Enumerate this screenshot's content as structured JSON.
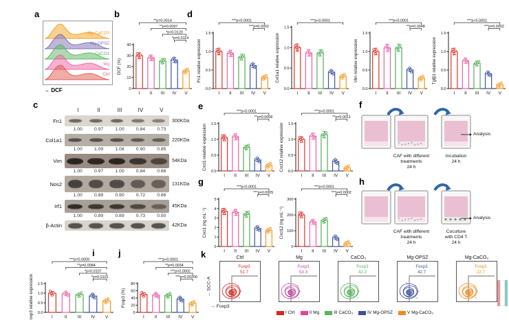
{
  "figure": {
    "panel_labels": {
      "a": "a",
      "b": "b",
      "c": "c",
      "d": "d",
      "e": "e",
      "f": "f",
      "g": "g",
      "h": "h",
      "i": "i",
      "j": "j",
      "k": "k"
    }
  },
  "groups": [
    "I",
    "II",
    "III",
    "IV",
    "V"
  ],
  "group_colors": [
    "#dd3328",
    "#ee5fa0",
    "#4fae52",
    "#3d51a3",
    "#f7941d"
  ],
  "panel_a": {
    "xlabel": "DCF",
    "curves": [
      {
        "label": "Mg-CaCO3",
        "color": "#f2a124"
      },
      {
        "label": "Mg-OPSZ",
        "color": "#8070b8"
      },
      {
        "label": "CaCO3",
        "color": "#5cb560"
      },
      {
        "label": "Mg",
        "color": "#ef64a2"
      },
      {
        "label": "Ctrl",
        "color": "#e25b52"
      }
    ]
  },
  "panel_c": {
    "lanes": [
      "I",
      "II",
      "III",
      "IV",
      "V"
    ],
    "rows": [
      {
        "protein": "Fn1",
        "kda": "300KDa",
        "values": [
          "1.00",
          "0.97",
          "1.00",
          "0.84",
          "0.73"
        ]
      },
      {
        "protein": "Col1a1",
        "kda": "220KDa",
        "values": [
          "1.00",
          "1.09",
          "1.08",
          "0.90",
          "0.85"
        ]
      },
      {
        "protein": "Vim",
        "kda": "54KDa",
        "values": [
          "1.00",
          "0.97",
          "1.00",
          "0.84",
          "0.66"
        ]
      },
      {
        "protein": "Nos2",
        "kda": "131KDa",
        "values": [
          "1.00",
          "0.89",
          "0.90",
          "0.72",
          "0.66"
        ]
      },
      {
        "protein": "Irf1",
        "kda": "45KDa",
        "values": [
          "1.00",
          "0.89",
          "0.89",
          "0.73",
          "0.50"
        ]
      },
      {
        "protein": "β-Actin",
        "kda": "42KDa",
        "values": []
      }
    ]
  },
  "panel_f": {
    "caption1_l1": "CAF with different",
    "caption1_l2": "treatments",
    "caption1_l3": "24 h",
    "caption2_l1": "Incubation",
    "caption2_l2": "24 h",
    "analysis": "Analysis"
  },
  "panel_h": {
    "caption1_l1": "CAF with different",
    "caption1_l2": "treatments",
    "caption1_l3": "24 h",
    "caption2_l1": "Coculture",
    "caption2_l2": "with CD4 T",
    "caption2_l3": "24 h",
    "analysis": "Analysis"
  },
  "panel_k": {
    "ylabel": "SCC-A",
    "xlabel": "Foxp3",
    "plots": [
      {
        "title": "Ctrl",
        "gate_label": "Foxp3",
        "gate_value": "51.7",
        "color": "#d8281e"
      },
      {
        "title": "Mg",
        "gate_label": "Foxp3",
        "gate_value": "53.3",
        "color": "#c0479c"
      },
      {
        "title": "CaCO₃",
        "gate_label": "Foxp3",
        "gate_value": "42.2",
        "color": "#58b45c"
      },
      {
        "title": "Mg-OPSZ",
        "gate_label": "Foxp3",
        "gate_value": "42.7",
        "color": "#3d4fa0"
      },
      {
        "title": "Mg-CaCO₃",
        "gate_label": "Foxp3",
        "gate_value": "22.7",
        "color": "#f08a1d"
      }
    ],
    "legend": [
      {
        "label": "I Ctrl",
        "color": "#d8281e"
      },
      {
        "label": "II Mg",
        "color": "#ec3f93"
      },
      {
        "label": "III CaCO₃",
        "color": "#58b45c"
      },
      {
        "label": "IV Mg-OPSZ",
        "color": "#3d4fa0"
      },
      {
        "label": "V Mg-CaCO₃",
        "color": "#f08a1d"
      }
    ]
  },
  "chart_data": [
    {
      "id": "b",
      "type": "bar",
      "ylabel": "DCF (%)",
      "categories": [
        "I",
        "II",
        "III",
        "IV",
        "V"
      ],
      "values": [
        30,
        28,
        25,
        26,
        16
      ],
      "ylim": [
        0,
        40
      ],
      "yticks": [
        "0",
        "10",
        "20",
        "30",
        "40"
      ],
      "sig": [
        {
          "from": 0,
          "to": 4,
          "text": "**p=0.0014"
        },
        {
          "from": 1,
          "to": 4,
          "text": "**p=0.0097"
        },
        {
          "from": 2,
          "to": 4,
          "text": "*p=0.0120"
        },
        {
          "from": 3,
          "to": 4,
          "text": "*p=0.0114"
        }
      ]
    },
    {
      "id": "d1",
      "type": "bar",
      "ylabel": "Fn1 relative expression",
      "categories": [
        "I",
        "II",
        "III",
        "IV",
        "V"
      ],
      "values": [
        1.0,
        0.95,
        0.85,
        0.62,
        0.3
      ],
      "ylim": [
        0,
        1.5
      ],
      "yticks": [
        "0.0",
        "0.5",
        "1.0",
        "1.5"
      ],
      "sig": [
        {
          "from": 0,
          "to": 4,
          "text": "***p<0.0001"
        },
        {
          "from": 3,
          "to": 4,
          "text": "***p=0.0002"
        }
      ]
    },
    {
      "id": "d2",
      "type": "bar",
      "ylabel": "Col1a1 relative expression",
      "categories": [
        "I",
        "II",
        "III",
        "IV",
        "V"
      ],
      "values": [
        1.0,
        0.87,
        0.87,
        0.4,
        0.3
      ],
      "ylim": [
        0,
        1.5
      ],
      "yticks": [
        "0.0",
        "0.5",
        "1.0",
        "1.5"
      ],
      "sig": [
        {
          "from": 0,
          "to": 4,
          "text": "***p<0.0001"
        }
      ]
    },
    {
      "id": "d3",
      "type": "bar",
      "ylabel": "Vim relative expression",
      "categories": [
        "I",
        "II",
        "III",
        "IV",
        "V"
      ],
      "values": [
        1.0,
        1.1,
        1.1,
        0.5,
        0.28
      ],
      "ylim": [
        0,
        1.5
      ],
      "yticks": [
        "0.0",
        "0.5",
        "1.0",
        "1.5"
      ],
      "sig": [
        {
          "from": 0,
          "to": 4,
          "text": "***p<0.0001"
        },
        {
          "from": 3,
          "to": 4,
          "text": "**p=0.0048"
        }
      ]
    },
    {
      "id": "d4",
      "type": "bar",
      "ylabel": "Tgfβ1 relative expression",
      "categories": [
        "I",
        "II",
        "III",
        "IV",
        "V"
      ],
      "values": [
        1.0,
        0.75,
        0.68,
        0.4,
        0.1
      ],
      "ylim": [
        0,
        1.5
      ],
      "yticks": [
        "0.0",
        "0.5",
        "1.0",
        "1.5"
      ],
      "sig": [
        {
          "from": 0,
          "to": 4,
          "text": "***p<0.0001"
        },
        {
          "from": 3,
          "to": 4,
          "text": "***p=0.0002"
        }
      ]
    },
    {
      "id": "e1",
      "type": "bar",
      "ylabel": "Cxcl1 relative expression",
      "categories": [
        "I",
        "II",
        "III",
        "IV",
        "V"
      ],
      "values": [
        1.05,
        1.08,
        0.75,
        0.35,
        0.18
      ],
      "ylim": [
        0,
        1.5
      ],
      "yticks": [
        "0.0",
        "0.5",
        "1.0",
        "1.5"
      ],
      "sig": [
        {
          "from": 0,
          "to": 4,
          "text": "***p<0.0001"
        },
        {
          "from": 3,
          "to": 4,
          "text": "**p=0.0058"
        }
      ]
    },
    {
      "id": "e2",
      "type": "bar",
      "ylabel": "Cxcl12 relative expression",
      "categories": [
        "I",
        "II",
        "III",
        "IV",
        "V"
      ],
      "values": [
        1.0,
        1.1,
        1.15,
        0.3,
        0.1
      ],
      "ylim": [
        0,
        1.5
      ],
      "yticks": [
        "0.0",
        "0.5",
        "1.0",
        "1.5"
      ],
      "sig": [
        {
          "from": 0,
          "to": 4,
          "text": "***p<0.0001"
        },
        {
          "from": 3,
          "to": 4,
          "text": "**p=0.0011"
        }
      ]
    },
    {
      "id": "g1",
      "type": "bar",
      "ylabel": "Cxcl1 (ng mL⁻¹)",
      "categories": [
        "I",
        "II",
        "III",
        "IV",
        "V"
      ],
      "values": [
        3.7,
        3.6,
        3.4,
        1.9,
        1.7
      ],
      "ylim": [
        0,
        5
      ],
      "yticks": [
        "0",
        "1",
        "2",
        "3",
        "4",
        "5"
      ],
      "sig": [
        {
          "from": 0,
          "to": 4,
          "text": "***p<0.0001"
        },
        {
          "from": 3,
          "to": 4,
          "text": "***p=0.0005"
        }
      ]
    },
    {
      "id": "g2",
      "type": "bar",
      "ylabel": "Cxcl12 (ng mL⁻¹)",
      "categories": [
        "I",
        "II",
        "III",
        "IV",
        "V"
      ],
      "values": [
        200,
        155,
        165,
        55,
        20
      ],
      "ylim": [
        0,
        300
      ],
      "yticks": [
        "0",
        "100",
        "200",
        "300"
      ],
      "sig": [
        {
          "from": 0,
          "to": 4,
          "text": "***p<0.0001"
        },
        {
          "from": 3,
          "to": 4,
          "text": "***p=0.0002"
        }
      ]
    },
    {
      "id": "i",
      "type": "bar",
      "ylabel": "Foxp3 relative expression",
      "categories": [
        "I",
        "II",
        "III",
        "IV",
        "V"
      ],
      "values": [
        1.0,
        0.97,
        0.92,
        0.85,
        0.6
      ],
      "ylim": [
        0,
        1.5
      ],
      "yticks": [
        "0.0",
        "0.5",
        "1.0",
        "1.5"
      ],
      "sig": [
        {
          "from": 0,
          "to": 4,
          "text": "***p=0.0009"
        },
        {
          "from": 1,
          "to": 4,
          "text": "**p=0.0084"
        },
        {
          "from": 2,
          "to": 4,
          "text": "*p=0.0107"
        },
        {
          "from": 3,
          "to": 4,
          "text": "*p=0.0101"
        }
      ]
    },
    {
      "id": "j",
      "type": "bar",
      "ylabel": "Foxp3 (%)",
      "categories": [
        "I",
        "II",
        "III",
        "IV",
        "V"
      ],
      "values": [
        50,
        48,
        47,
        37,
        25
      ],
      "ylim": [
        0,
        80
      ],
      "yticks": [
        "0",
        "20",
        "40",
        "60",
        "80"
      ],
      "sig": [
        {
          "from": 0,
          "to": 4,
          "text": "***p<0.0001"
        },
        {
          "from": 1,
          "to": 4,
          "text": "**p=0.0034"
        },
        {
          "from": 2,
          "to": 4,
          "text": "***p=0.0002"
        },
        {
          "from": 3,
          "to": 4,
          "text": "***p=0.00206"
        }
      ]
    }
  ]
}
